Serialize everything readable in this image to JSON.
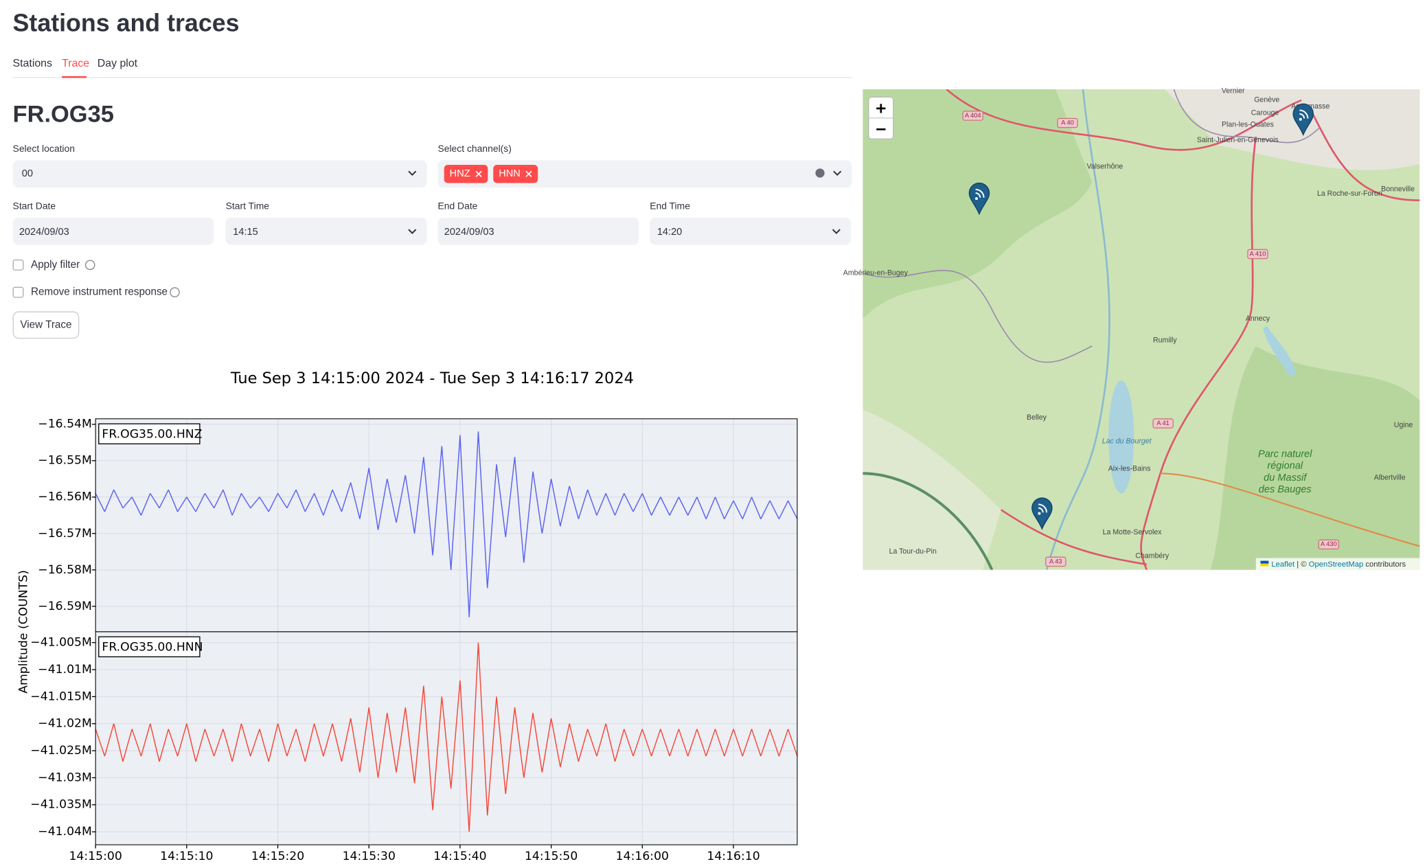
{
  "header": {
    "title": "Stations and traces"
  },
  "tabs": [
    "Stations",
    "Trace",
    "Day plot"
  ],
  "station": "FR.OG35",
  "form": {
    "location_label": "Select location",
    "location": "00",
    "channels_label": "Select channel(s)",
    "channels": [
      "HNZ",
      "HNN"
    ],
    "start_date_label": "Start Date",
    "start_date": "2024/09/03",
    "start_time_label": "Start Time",
    "start_time": "14:15",
    "end_date_label": "End Date",
    "end_date": "2024/09/03",
    "end_time_label": "End Time",
    "end_time": "14:20",
    "apply_filter": "Apply filter",
    "remove_response": "Remove instrument response",
    "button": "View Trace"
  },
  "chart_data": {
    "type": "line",
    "title": "Tue Sep  3 14:15:00 2024 - Tue Sep  3 14:16:17 2024",
    "y_label": "Amplitude (COUNTS)",
    "x": [
      0,
      1,
      2,
      3,
      4,
      5,
      6,
      7,
      8,
      9,
      10,
      11,
      12,
      13,
      14,
      15,
      16,
      17,
      18,
      19,
      20,
      21,
      22,
      23,
      24,
      25,
      26,
      27,
      28,
      29,
      30,
      31,
      32,
      33,
      34,
      35,
      36,
      37,
      38,
      39,
      40,
      41,
      42,
      43,
      44,
      45,
      46,
      47,
      48,
      49,
      50,
      51,
      52,
      53,
      54,
      55,
      56,
      57,
      58,
      59,
      60,
      61,
      62,
      63,
      64,
      65,
      66,
      67,
      68,
      69,
      70,
      71,
      72,
      73,
      74,
      75,
      76,
      77
    ],
    "xlim": [
      0,
      77
    ],
    "xticks": [
      {
        "value": 0,
        "label": "14:15:00"
      },
      {
        "value": 10,
        "label": "14:15:10"
      },
      {
        "value": 20,
        "label": "14:15:20"
      },
      {
        "value": 30,
        "label": "14:15:30"
      },
      {
        "value": 40,
        "label": "14:15:40"
      },
      {
        "value": 50,
        "label": "14:15:50"
      },
      {
        "value": 60,
        "label": "14:16:00"
      },
      {
        "value": 70,
        "label": "14:16:10"
      }
    ],
    "grid": true,
    "panels": [
      {
        "ylim": [
          -16.597,
          -16.5385
        ],
        "yticks": [
          {
            "value": -16.54,
            "label": "−16.54M"
          },
          {
            "value": -16.55,
            "label": "−16.55M"
          },
          {
            "value": -16.56,
            "label": "−16.56M"
          },
          {
            "value": -16.57,
            "label": "−16.57M"
          },
          {
            "value": -16.58,
            "label": "−16.58M"
          },
          {
            "value": -16.59,
            "label": "−16.59M"
          }
        ],
        "series": [
          {
            "name": "FR.OG35.00.HNZ",
            "color": "#5b63f0",
            "values": [
              -16.559,
              -16.564,
              -16.558,
              -16.563,
              -16.56,
              -16.565,
              -16.559,
              -16.563,
              -16.558,
              -16.564,
              -16.56,
              -16.564,
              -16.559,
              -16.563,
              -16.558,
              -16.565,
              -16.559,
              -16.563,
              -16.56,
              -16.564,
              -16.559,
              -16.563,
              -16.558,
              -16.564,
              -16.559,
              -16.565,
              -16.558,
              -16.564,
              -16.556,
              -16.566,
              -16.552,
              -16.569,
              -16.555,
              -16.567,
              -16.554,
              -16.57,
              -16.549,
              -16.576,
              -16.546,
              -16.58,
              -16.543,
              -16.593,
              -16.542,
              -16.585,
              -16.551,
              -16.571,
              -16.549,
              -16.578,
              -16.553,
              -16.57,
              -16.555,
              -16.568,
              -16.557,
              -16.566,
              -16.558,
              -16.565,
              -16.559,
              -16.565,
              -16.559,
              -16.564,
              -16.559,
              -16.565,
              -16.56,
              -16.565,
              -16.56,
              -16.565,
              -16.56,
              -16.566,
              -16.56,
              -16.566,
              -16.561,
              -16.566,
              -16.56,
              -16.566,
              -16.561,
              -16.566,
              -16.561,
              -16.566
            ]
          }
        ]
      },
      {
        "ylim": [
          -41.0424,
          -41.003
        ],
        "yticks": [
          {
            "value": -41.005,
            "label": "−41.005M"
          },
          {
            "value": -41.01,
            "label": "−41.01M"
          },
          {
            "value": -41.015,
            "label": "−41.015M"
          },
          {
            "value": -41.02,
            "label": "−41.02M"
          },
          {
            "value": -41.025,
            "label": "−41.025M"
          },
          {
            "value": -41.03,
            "label": "−41.03M"
          },
          {
            "value": -41.035,
            "label": "−41.035M"
          },
          {
            "value": -41.04,
            "label": "−41.04M"
          }
        ],
        "series": [
          {
            "name": "FR.OG35.00.HNN",
            "color": "#f5483a",
            "values": [
              -41.021,
              -41.026,
              -41.02,
              -41.027,
              -41.021,
              -41.026,
              -41.02,
              -41.027,
              -41.021,
              -41.026,
              -41.02,
              -41.027,
              -41.021,
              -41.026,
              -41.021,
              -41.027,
              -41.02,
              -41.026,
              -41.021,
              -41.027,
              -41.02,
              -41.026,
              -41.021,
              -41.027,
              -41.02,
              -41.026,
              -41.02,
              -41.027,
              -41.019,
              -41.029,
              -41.017,
              -41.03,
              -41.018,
              -41.029,
              -41.017,
              -41.031,
              -41.013,
              -41.036,
              -41.015,
              -41.032,
              -41.012,
              -41.04,
              -41.005,
              -41.037,
              -41.015,
              -41.033,
              -41.017,
              -41.03,
              -41.018,
              -41.029,
              -41.019,
              -41.028,
              -41.02,
              -41.027,
              -41.021,
              -41.026,
              -41.02,
              -41.027,
              -41.021,
              -41.026,
              -41.021,
              -41.026,
              -41.021,
              -41.026,
              -41.021,
              -41.026,
              -41.021,
              -41.026,
              -41.021,
              -41.026,
              -41.021,
              -41.026,
              -41.021,
              -41.026,
              -41.021,
              -41.026,
              -41.021,
              -41.026
            ]
          }
        ]
      }
    ]
  },
  "map": {
    "places": [
      "Vernier",
      "Genève",
      "Annemasse",
      "Carouge",
      "Plan-les-Ouates",
      "Saint-Julien-en-Genevois",
      "Valserhône",
      "La Roche-sur-Foron",
      "Bonneville",
      "Annecy",
      "Rumilly",
      "Belley",
      "Aix-les-Bains",
      "La Motte-Servolex",
      "Chambéry",
      "Albertville",
      "Ugine",
      "La Tour-du-Pin",
      "Ambérieu-en-Bugey",
      "Lac du Bourget"
    ],
    "roads": [
      "A 404",
      "A 40",
      "A 410",
      "A 41",
      "A 43",
      "A 430"
    ],
    "park": [
      "Parc naturel",
      "régional",
      "du Massif",
      "des Bauges"
    ],
    "attribution": [
      "Leaflet",
      "| ©",
      "OpenStreetMap",
      "contributors"
    ]
  }
}
